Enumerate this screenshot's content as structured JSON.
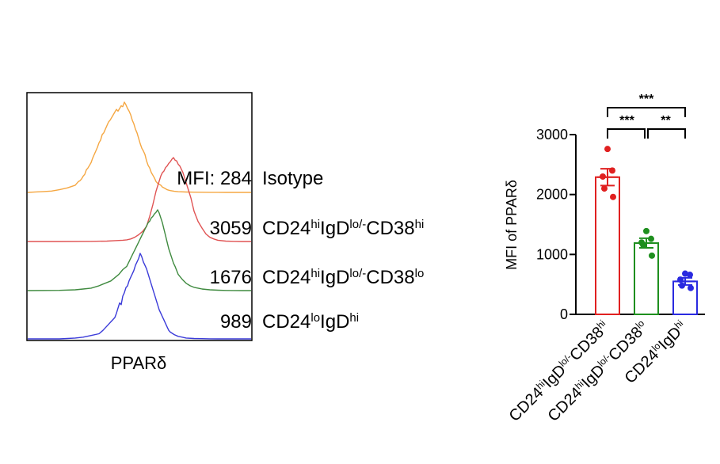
{
  "chart_data": [
    {
      "type": "histogram-overlay",
      "xlabel": "PPARδ",
      "series": [
        {
          "key": "iso",
          "mfi_label": "MFI: 284",
          "name_parts": [
            {
              "t": "Isotype"
            }
          ],
          "color": "#f5a742",
          "x": [
            0,
            10,
            20,
            30,
            40,
            50,
            60,
            62,
            64,
            66,
            68,
            70,
            72,
            74,
            76,
            78,
            80,
            82,
            84,
            86,
            88,
            90,
            92,
            94,
            96,
            98,
            100,
            102,
            104,
            106,
            108,
            110,
            112,
            114,
            116,
            118,
            120,
            122,
            124,
            126,
            128,
            130,
            132,
            134,
            136,
            138,
            140,
            142,
            144,
            146,
            148,
            150,
            152,
            154,
            156,
            158,
            160,
            162,
            164,
            166,
            168,
            170,
            172,
            174,
            176,
            178,
            180,
            185,
            190,
            200,
            210,
            220,
            230,
            240,
            250,
            260,
            270,
            282
          ],
          "y": [
            0,
            0.005,
            0.01,
            0.015,
            0.03,
            0.05,
            0.08,
            0.1,
            0.12,
            0.13,
            0.15,
            0.18,
            0.2,
            0.25,
            0.27,
            0.3,
            0.33,
            0.38,
            0.42,
            0.46,
            0.5,
            0.55,
            0.58,
            0.64,
            0.66,
            0.7,
            0.74,
            0.78,
            0.8,
            0.83,
            0.86,
            0.89,
            0.92,
            0.9,
            0.93,
            0.96,
            0.95,
            1.0,
            0.97,
            0.93,
            0.9,
            0.86,
            0.8,
            0.76,
            0.7,
            0.66,
            0.6,
            0.54,
            0.49,
            0.46,
            0.42,
            0.35,
            0.3,
            0.27,
            0.22,
            0.19,
            0.16,
            0.12,
            0.1,
            0.09,
            0.08,
            0.06,
            0.05,
            0.04,
            0.03,
            0.025,
            0.02,
            0.012,
            0.008,
            0.004,
            0.003,
            0.002,
            0.001,
            0.001,
            0,
            0,
            0,
            0
          ]
        },
        {
          "key": "hi",
          "mfi_label": "3059",
          "name_parts": [
            {
              "t": "CD24"
            },
            {
              "t": "hi",
              "sup": true
            },
            {
              "t": "IgD"
            },
            {
              "t": "lo/-",
              "sup": true
            },
            {
              "t": "CD38"
            },
            {
              "t": "hi",
              "sup": true
            }
          ],
          "color": "#e05454",
          "x": [
            0,
            40,
            80,
            100,
            110,
            120,
            125,
            130,
            135,
            140,
            145,
            150,
            152,
            154,
            156,
            158,
            160,
            162,
            164,
            166,
            168,
            170,
            172,
            174,
            176,
            178,
            180,
            182,
            184,
            186,
            188,
            190,
            192,
            194,
            196,
            198,
            200,
            202,
            204,
            206,
            208,
            210,
            215,
            220,
            225,
            230,
            235,
            240,
            250,
            260,
            270,
            282
          ],
          "y": [
            0,
            0,
            0.002,
            0.005,
            0.01,
            0.015,
            0.02,
            0.03,
            0.05,
            0.08,
            0.12,
            0.18,
            0.24,
            0.3,
            0.37,
            0.44,
            0.52,
            0.6,
            0.66,
            0.72,
            0.78,
            0.82,
            0.84,
            0.88,
            0.9,
            0.93,
            0.95,
            0.98,
            1.0,
            0.97,
            0.96,
            0.92,
            0.9,
            0.86,
            0.82,
            0.76,
            0.7,
            0.64,
            0.58,
            0.52,
            0.44,
            0.36,
            0.24,
            0.16,
            0.09,
            0.05,
            0.03,
            0.015,
            0.005,
            0.002,
            0,
            0
          ]
        },
        {
          "key": "mid",
          "mfi_label": "1676",
          "name_parts": [
            {
              "t": "CD24"
            },
            {
              "t": "hi",
              "sup": true
            },
            {
              "t": "IgD"
            },
            {
              "t": "lo/-",
              "sup": true
            },
            {
              "t": "CD38"
            },
            {
              "t": "lo",
              "sup": true
            }
          ],
          "color": "#3f8a3f",
          "x": [
            0,
            40,
            60,
            70,
            80,
            90,
            95,
            100,
            105,
            110,
            115,
            120,
            125,
            128,
            130,
            132,
            134,
            136,
            138,
            140,
            142,
            144,
            146,
            148,
            150,
            152,
            154,
            156,
            158,
            160,
            162,
            164,
            166,
            168,
            170,
            172,
            174,
            176,
            178,
            180,
            182,
            184,
            186,
            188,
            190,
            195,
            200,
            205,
            210,
            215,
            220,
            230,
            240,
            250,
            260,
            270,
            282
          ],
          "y": [
            0,
            0.003,
            0.01,
            0.02,
            0.03,
            0.06,
            0.08,
            0.1,
            0.12,
            0.16,
            0.2,
            0.26,
            0.3,
            0.36,
            0.4,
            0.44,
            0.48,
            0.52,
            0.56,
            0.6,
            0.64,
            0.68,
            0.72,
            0.76,
            0.8,
            0.84,
            0.86,
            0.9,
            0.92,
            0.95,
            0.97,
            1.0,
            0.96,
            0.9,
            0.84,
            0.76,
            0.68,
            0.6,
            0.52,
            0.46,
            0.4,
            0.34,
            0.3,
            0.25,
            0.2,
            0.14,
            0.09,
            0.06,
            0.04,
            0.03,
            0.02,
            0.01,
            0.005,
            0.002,
            0.001,
            0,
            0
          ]
        },
        {
          "key": "lo",
          "mfi_label": "989",
          "name_parts": [
            {
              "t": "CD24"
            },
            {
              "t": "lo",
              "sup": true
            },
            {
              "t": "IgD"
            },
            {
              "t": "hi",
              "sup": true
            }
          ],
          "color": "#3b3bd9",
          "x": [
            0,
            40,
            50,
            60,
            70,
            80,
            90,
            95,
            100,
            105,
            110,
            112,
            114,
            116,
            118,
            120,
            122,
            124,
            126,
            128,
            130,
            132,
            134,
            136,
            138,
            140,
            142,
            144,
            146,
            148,
            150,
            152,
            154,
            156,
            158,
            160,
            162,
            164,
            166,
            168,
            170,
            172,
            174,
            176,
            178,
            180,
            185,
            190,
            195,
            200,
            210,
            220,
            230,
            240,
            260,
            282
          ],
          "y": [
            0,
            0,
            0.005,
            0.01,
            0.02,
            0.04,
            0.06,
            0.1,
            0.15,
            0.2,
            0.25,
            0.3,
            0.36,
            0.42,
            0.4,
            0.5,
            0.54,
            0.6,
            0.62,
            0.68,
            0.72,
            0.76,
            0.8,
            0.86,
            0.9,
            0.94,
            1.0,
            0.96,
            0.9,
            0.86,
            0.82,
            0.76,
            0.7,
            0.64,
            0.58,
            0.52,
            0.46,
            0.4,
            0.34,
            0.3,
            0.26,
            0.22,
            0.18,
            0.14,
            0.1,
            0.08,
            0.05,
            0.03,
            0.02,
            0.01,
            0.005,
            0.003,
            0.001,
            0,
            0,
            0
          ]
        }
      ]
    },
    {
      "type": "bar",
      "ylabel": "MFI of PPARδ",
      "ylim": [
        0,
        3000
      ],
      "yticks": [
        0,
        1000,
        2000,
        3000
      ],
      "categories": [
        {
          "color": "#e02020",
          "parts": [
            {
              "t": "CD24"
            },
            {
              "t": "hi",
              "sup": true
            },
            {
              "t": "IgD"
            },
            {
              "t": "lo/-",
              "sup": true
            },
            {
              "t": "CD38"
            },
            {
              "t": "hi",
              "sup": true
            }
          ]
        },
        {
          "color": "#1f8f1f",
          "parts": [
            {
              "t": "CD24"
            },
            {
              "t": "hi",
              "sup": true
            },
            {
              "t": "IgD"
            },
            {
              "t": "lo/-",
              "sup": true
            },
            {
              "t": "CD38"
            },
            {
              "t": "lo",
              "sup": true
            }
          ]
        },
        {
          "color": "#2a2ae0",
          "parts": [
            {
              "t": "CD24"
            },
            {
              "t": "lo",
              "sup": true
            },
            {
              "t": "IgD"
            },
            {
              "t": "hi",
              "sup": true
            }
          ]
        }
      ],
      "values": [
        2290,
        1190,
        550
      ],
      "errors": [
        140,
        80,
        60
      ],
      "points": [
        [
          2760,
          2400,
          2300,
          2100,
          1960
        ],
        [
          1390,
          1260,
          1200,
          1160,
          980
        ],
        [
          680,
          660,
          580,
          480,
          440
        ]
      ],
      "significance": [
        {
          "from": 0,
          "to": 1,
          "label": "***"
        },
        {
          "from": 1,
          "to": 2,
          "label": "**"
        },
        {
          "from": 0,
          "to": 2,
          "label": "***"
        }
      ]
    }
  ]
}
